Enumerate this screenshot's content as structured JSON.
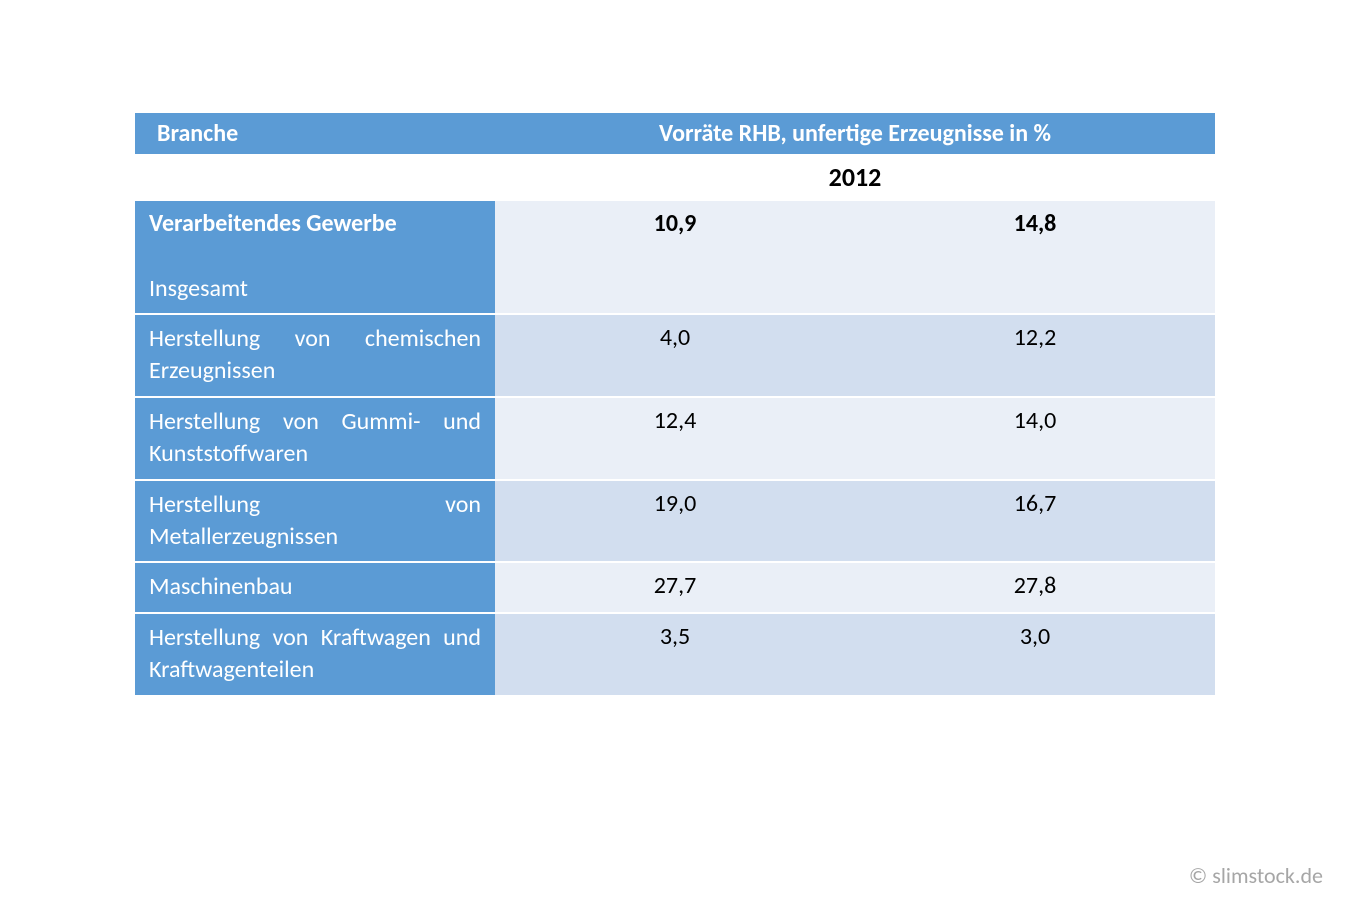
{
  "table": {
    "header": {
      "col1": "Branche",
      "col23": "Vorräte RHB, unfertige Erzeugnisse in %"
    },
    "year": "2012",
    "total": {
      "label_top": "Verarbeitendes Gewerbe",
      "label_bottom": "Insgesamt",
      "v1": "10,9",
      "v2": "14,8"
    },
    "rows": [
      {
        "label": "Herstellung von chemischen Erzeugnissen",
        "v1": "4,0",
        "v2": "12,2",
        "shade": "mid",
        "single": false
      },
      {
        "label": "Herstellung von Gummi- und Kunststoffwaren",
        "v1": "12,4",
        "v2": "14,0",
        "shade": "light",
        "single": false
      },
      {
        "label": "Herstellung von Metallerzeugnissen",
        "v1": "19,0",
        "v2": "16,7",
        "shade": "mid",
        "single": false
      },
      {
        "label": "Maschinenbau",
        "v1": "27,7",
        "v2": "27,8",
        "shade": "light",
        "single": true
      },
      {
        "label": "Herstellung von Kraftwagen und Kraftwagenteilen",
        "v1": "3,5",
        "v2": "3,0",
        "shade": "mid",
        "single": false
      }
    ]
  },
  "footer": "© slimstock.de",
  "colors": {
    "header_bg": "#5b9bd5",
    "header_fg": "#ffffff",
    "light": "#eaeff7",
    "mid": "#d2deef",
    "footer_fg": "#a6a6a6"
  }
}
